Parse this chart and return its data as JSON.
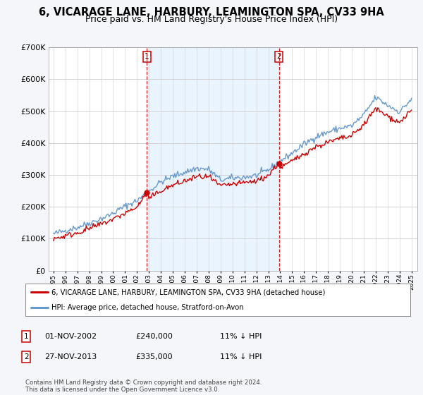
{
  "title": "6, VICARAGE LANE, HARBURY, LEAMINGTON SPA, CV33 9HA",
  "subtitle": "Price paid vs. HM Land Registry's House Price Index (HPI)",
  "legend_property": "6, VICARAGE LANE, HARBURY, LEAMINGTON SPA, CV33 9HA (detached house)",
  "legend_hpi": "HPI: Average price, detached house, Stratford-on-Avon",
  "sale1_date": "01-NOV-2002",
  "sale1_price": 240000,
  "sale1_label": "1",
  "sale1_note": "11% ↓ HPI",
  "sale2_date": "27-NOV-2013",
  "sale2_price": 335000,
  "sale2_label": "2",
  "sale2_note": "11% ↓ HPI",
  "footer": "Contains HM Land Registry data © Crown copyright and database right 2024.\nThis data is licensed under the Open Government Licence v3.0.",
  "ylim": [
    0,
    700000
  ],
  "yticks": [
    0,
    100000,
    200000,
    300000,
    400000,
    500000,
    600000,
    700000
  ],
  "background_color": "#f4f6f9",
  "plot_bg_color": "#ffffff",
  "red_line_color": "#cc0000",
  "blue_line_color": "#6699cc",
  "fill_color": "#ddeeff",
  "vline_color": "#cc0000",
  "title_fontsize": 10.5,
  "subtitle_fontsize": 9,
  "property_sale1_year": 2002.833,
  "property_sale2_year": 2013.9
}
